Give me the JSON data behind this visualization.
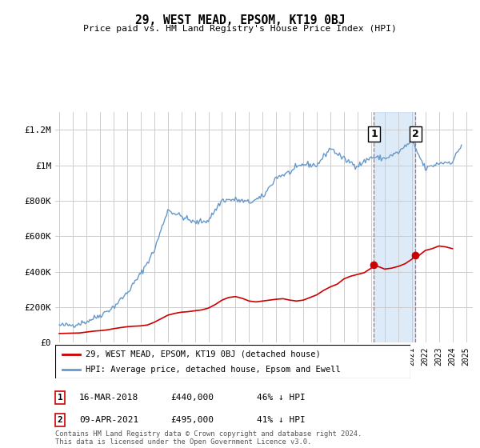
{
  "title": "29, WEST MEAD, EPSOM, KT19 0BJ",
  "subtitle": "Price paid vs. HM Land Registry's House Price Index (HPI)",
  "legend_label_red": "29, WEST MEAD, EPSOM, KT19 0BJ (detached house)",
  "legend_label_blue": "HPI: Average price, detached house, Epsom and Ewell",
  "footer": "Contains HM Land Registry data © Crown copyright and database right 2024.\nThis data is licensed under the Open Government Licence v3.0.",
  "transaction1": {
    "date": "16-MAR-2018",
    "price": 440000,
    "hpi_pct": "46% ↓ HPI",
    "year": 2018.21
  },
  "transaction2": {
    "date": "09-APR-2021",
    "price": 495000,
    "hpi_pct": "41% ↓ HPI",
    "year": 2021.27
  },
  "color_red": "#cc0000",
  "color_blue": "#6699cc",
  "color_blue_light": "#aaccee",
  "background_color": "#ffffff",
  "grid_color": "#cccccc",
  "ylim": [
    0,
    1300000
  ],
  "xlim_start": 1995,
  "xlim_end": 2025.5,
  "yticks": [
    0,
    200000,
    400000,
    600000,
    800000,
    1000000,
    1200000
  ],
  "ytick_labels": [
    "£0",
    "£200K",
    "£400K",
    "£600K",
    "£800K",
    "£1M",
    "£1.2M"
  ],
  "xticks": [
    1995,
    1996,
    1997,
    1998,
    1999,
    2000,
    2001,
    2002,
    2003,
    2004,
    2005,
    2006,
    2007,
    2008,
    2009,
    2010,
    2011,
    2012,
    2013,
    2014,
    2015,
    2016,
    2017,
    2018,
    2019,
    2020,
    2021,
    2022,
    2023,
    2024,
    2025
  ],
  "red_years": [
    1995.0,
    1995.5,
    1996.0,
    1996.5,
    1997.0,
    1997.5,
    1998.0,
    1998.5,
    1999.0,
    1999.5,
    2000.0,
    2000.5,
    2001.0,
    2001.5,
    2002.0,
    2002.5,
    2003.0,
    2003.5,
    2004.0,
    2004.5,
    2005.0,
    2005.5,
    2006.0,
    2006.5,
    2007.0,
    2007.5,
    2008.0,
    2008.5,
    2009.0,
    2009.5,
    2010.0,
    2010.5,
    2011.0,
    2011.5,
    2012.0,
    2012.5,
    2013.0,
    2013.5,
    2014.0,
    2014.5,
    2015.0,
    2015.5,
    2016.0,
    2016.5,
    2017.0,
    2017.5,
    2018.0,
    2018.21,
    2018.5,
    2019.0,
    2019.5,
    2020.0,
    2020.5,
    2021.0,
    2021.27,
    2021.5,
    2022.0,
    2022.5,
    2023.0,
    2023.5,
    2024.0
  ],
  "red_values": [
    52000,
    53000,
    54000,
    55000,
    60000,
    65000,
    68000,
    72000,
    79000,
    85000,
    90000,
    93000,
    95000,
    100000,
    115000,
    135000,
    155000,
    165000,
    172000,
    175000,
    180000,
    185000,
    195000,
    215000,
    240000,
    255000,
    260000,
    250000,
    235000,
    230000,
    235000,
    240000,
    245000,
    248000,
    240000,
    235000,
    240000,
    255000,
    270000,
    295000,
    315000,
    330000,
    360000,
    375000,
    385000,
    395000,
    420000,
    440000,
    430000,
    415000,
    420000,
    430000,
    445000,
    470000,
    495000,
    490000,
    520000,
    530000,
    545000,
    540000,
    530000
  ]
}
